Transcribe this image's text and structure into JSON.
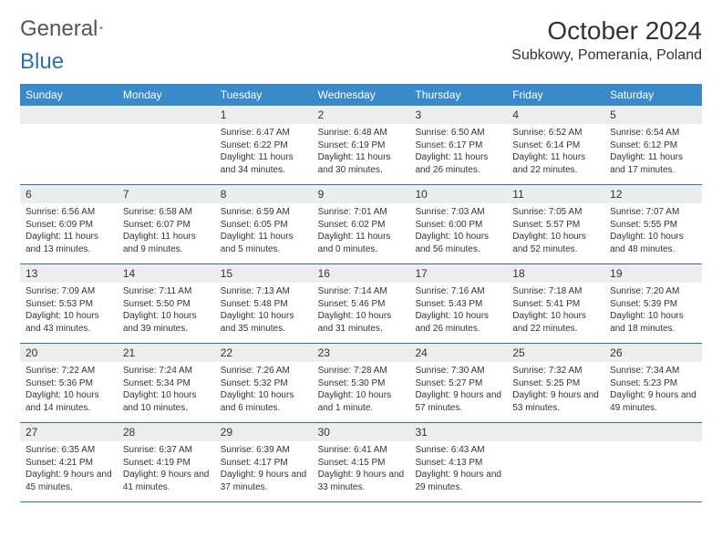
{
  "logo": {
    "part1": "General",
    "part2": "Blue"
  },
  "title": "October 2024",
  "location": "Subkowy, Pomerania, Poland",
  "daynames": [
    "Sunday",
    "Monday",
    "Tuesday",
    "Wednesday",
    "Thursday",
    "Friday",
    "Saturday"
  ],
  "colors": {
    "header_bg": "#3a8ac9",
    "header_text": "#ffffff",
    "daynum_bg": "#eceded",
    "border": "#2d6fb5",
    "text": "#333333"
  },
  "weeks": [
    [
      {
        "n": "",
        "sr": "",
        "ss": "",
        "dl": ""
      },
      {
        "n": "",
        "sr": "",
        "ss": "",
        "dl": ""
      },
      {
        "n": "1",
        "sr": "Sunrise: 6:47 AM",
        "ss": "Sunset: 6:22 PM",
        "dl": "Daylight: 11 hours and 34 minutes."
      },
      {
        "n": "2",
        "sr": "Sunrise: 6:48 AM",
        "ss": "Sunset: 6:19 PM",
        "dl": "Daylight: 11 hours and 30 minutes."
      },
      {
        "n": "3",
        "sr": "Sunrise: 6:50 AM",
        "ss": "Sunset: 6:17 PM",
        "dl": "Daylight: 11 hours and 26 minutes."
      },
      {
        "n": "4",
        "sr": "Sunrise: 6:52 AM",
        "ss": "Sunset: 6:14 PM",
        "dl": "Daylight: 11 hours and 22 minutes."
      },
      {
        "n": "5",
        "sr": "Sunrise: 6:54 AM",
        "ss": "Sunset: 6:12 PM",
        "dl": "Daylight: 11 hours and 17 minutes."
      }
    ],
    [
      {
        "n": "6",
        "sr": "Sunrise: 6:56 AM",
        "ss": "Sunset: 6:09 PM",
        "dl": "Daylight: 11 hours and 13 minutes."
      },
      {
        "n": "7",
        "sr": "Sunrise: 6:58 AM",
        "ss": "Sunset: 6:07 PM",
        "dl": "Daylight: 11 hours and 9 minutes."
      },
      {
        "n": "8",
        "sr": "Sunrise: 6:59 AM",
        "ss": "Sunset: 6:05 PM",
        "dl": "Daylight: 11 hours and 5 minutes."
      },
      {
        "n": "9",
        "sr": "Sunrise: 7:01 AM",
        "ss": "Sunset: 6:02 PM",
        "dl": "Daylight: 11 hours and 0 minutes."
      },
      {
        "n": "10",
        "sr": "Sunrise: 7:03 AM",
        "ss": "Sunset: 6:00 PM",
        "dl": "Daylight: 10 hours and 56 minutes."
      },
      {
        "n": "11",
        "sr": "Sunrise: 7:05 AM",
        "ss": "Sunset: 5:57 PM",
        "dl": "Daylight: 10 hours and 52 minutes."
      },
      {
        "n": "12",
        "sr": "Sunrise: 7:07 AM",
        "ss": "Sunset: 5:55 PM",
        "dl": "Daylight: 10 hours and 48 minutes."
      }
    ],
    [
      {
        "n": "13",
        "sr": "Sunrise: 7:09 AM",
        "ss": "Sunset: 5:53 PM",
        "dl": "Daylight: 10 hours and 43 minutes."
      },
      {
        "n": "14",
        "sr": "Sunrise: 7:11 AM",
        "ss": "Sunset: 5:50 PM",
        "dl": "Daylight: 10 hours and 39 minutes."
      },
      {
        "n": "15",
        "sr": "Sunrise: 7:13 AM",
        "ss": "Sunset: 5:48 PM",
        "dl": "Daylight: 10 hours and 35 minutes."
      },
      {
        "n": "16",
        "sr": "Sunrise: 7:14 AM",
        "ss": "Sunset: 5:46 PM",
        "dl": "Daylight: 10 hours and 31 minutes."
      },
      {
        "n": "17",
        "sr": "Sunrise: 7:16 AM",
        "ss": "Sunset: 5:43 PM",
        "dl": "Daylight: 10 hours and 26 minutes."
      },
      {
        "n": "18",
        "sr": "Sunrise: 7:18 AM",
        "ss": "Sunset: 5:41 PM",
        "dl": "Daylight: 10 hours and 22 minutes."
      },
      {
        "n": "19",
        "sr": "Sunrise: 7:20 AM",
        "ss": "Sunset: 5:39 PM",
        "dl": "Daylight: 10 hours and 18 minutes."
      }
    ],
    [
      {
        "n": "20",
        "sr": "Sunrise: 7:22 AM",
        "ss": "Sunset: 5:36 PM",
        "dl": "Daylight: 10 hours and 14 minutes."
      },
      {
        "n": "21",
        "sr": "Sunrise: 7:24 AM",
        "ss": "Sunset: 5:34 PM",
        "dl": "Daylight: 10 hours and 10 minutes."
      },
      {
        "n": "22",
        "sr": "Sunrise: 7:26 AM",
        "ss": "Sunset: 5:32 PM",
        "dl": "Daylight: 10 hours and 6 minutes."
      },
      {
        "n": "23",
        "sr": "Sunrise: 7:28 AM",
        "ss": "Sunset: 5:30 PM",
        "dl": "Daylight: 10 hours and 1 minute."
      },
      {
        "n": "24",
        "sr": "Sunrise: 7:30 AM",
        "ss": "Sunset: 5:27 PM",
        "dl": "Daylight: 9 hours and 57 minutes."
      },
      {
        "n": "25",
        "sr": "Sunrise: 7:32 AM",
        "ss": "Sunset: 5:25 PM",
        "dl": "Daylight: 9 hours and 53 minutes."
      },
      {
        "n": "26",
        "sr": "Sunrise: 7:34 AM",
        "ss": "Sunset: 5:23 PM",
        "dl": "Daylight: 9 hours and 49 minutes."
      }
    ],
    [
      {
        "n": "27",
        "sr": "Sunrise: 6:35 AM",
        "ss": "Sunset: 4:21 PM",
        "dl": "Daylight: 9 hours and 45 minutes."
      },
      {
        "n": "28",
        "sr": "Sunrise: 6:37 AM",
        "ss": "Sunset: 4:19 PM",
        "dl": "Daylight: 9 hours and 41 minutes."
      },
      {
        "n": "29",
        "sr": "Sunrise: 6:39 AM",
        "ss": "Sunset: 4:17 PM",
        "dl": "Daylight: 9 hours and 37 minutes."
      },
      {
        "n": "30",
        "sr": "Sunrise: 6:41 AM",
        "ss": "Sunset: 4:15 PM",
        "dl": "Daylight: 9 hours and 33 minutes."
      },
      {
        "n": "31",
        "sr": "Sunrise: 6:43 AM",
        "ss": "Sunset: 4:13 PM",
        "dl": "Daylight: 9 hours and 29 minutes."
      },
      {
        "n": "",
        "sr": "",
        "ss": "",
        "dl": ""
      },
      {
        "n": "",
        "sr": "",
        "ss": "",
        "dl": ""
      }
    ]
  ]
}
